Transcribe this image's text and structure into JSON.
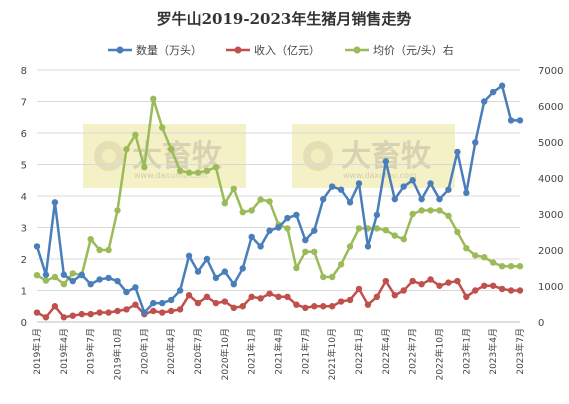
{
  "chart_data": {
    "type": "line",
    "title": "罗牛山2019-2023年生猪月销售走势",
    "y_left_ticks": [
      "0",
      "1",
      "2",
      "3",
      "4",
      "5",
      "6",
      "7",
      "8"
    ],
    "y_right_ticks": [
      "0",
      "1000",
      "2000",
      "3000",
      "4000",
      "5000",
      "6000",
      "7000"
    ],
    "ylim_left": [
      0,
      8
    ],
    "ylim_right": [
      0,
      7000
    ],
    "x_tick_labels": [
      "2019年1月",
      "2019年4月",
      "2019年7月",
      "2019年10月",
      "2020年1月",
      "2020年4月",
      "2020年7月",
      "2020年10月",
      "2021年1月",
      "2021年4月",
      "2021年7月",
      "2021年10月",
      "2022年1月",
      "2022年4月",
      "2022年7月",
      "2022年10月",
      "2023年1月",
      "2023年4月",
      "2023年7月"
    ],
    "months_count": 55,
    "grid": "horizontal",
    "legend_position": "top",
    "watermark": {
      "brand": "大畜牧",
      "url": "www.daxumu.com"
    },
    "series": [
      {
        "name": "数量（万头）",
        "axis": "left",
        "color": "#4a7ebb",
        "values": [
          2.4,
          1.5,
          3.8,
          1.5,
          1.3,
          1.5,
          1.2,
          1.35,
          1.4,
          1.3,
          0.95,
          1.1,
          0.3,
          0.6,
          0.6,
          0.7,
          1.0,
          2.1,
          1.6,
          2.0,
          1.4,
          1.6,
          1.2,
          1.7,
          2.7,
          2.4,
          2.9,
          3.0,
          3.3,
          3.4,
          2.6,
          2.9,
          3.9,
          4.3,
          4.2,
          3.8,
          4.4,
          2.4,
          3.4,
          5.1,
          3.9,
          4.3,
          4.5,
          3.9,
          4.4,
          3.9,
          4.2,
          5.4,
          4.1,
          5.7,
          7.0,
          7.3,
          7.5,
          6.4,
          6.4
        ]
      },
      {
        "name": "收入（亿元）",
        "axis": "left",
        "color": "#c0504d",
        "values": [
          0.3,
          0.15,
          0.5,
          0.15,
          0.2,
          0.25,
          0.25,
          0.3,
          0.3,
          0.35,
          0.4,
          0.55,
          0.25,
          0.35,
          0.3,
          0.35,
          0.4,
          0.85,
          0.6,
          0.8,
          0.6,
          0.65,
          0.45,
          0.5,
          0.8,
          0.75,
          0.9,
          0.8,
          0.8,
          0.55,
          0.45,
          0.5,
          0.5,
          0.5,
          0.65,
          0.7,
          1.05,
          0.55,
          0.8,
          1.3,
          0.85,
          1.0,
          1.3,
          1.2,
          1.35,
          1.15,
          1.25,
          1.3,
          0.8,
          1.0,
          1.15,
          1.15,
          1.05,
          1.0,
          1.0
        ]
      },
      {
        "name": "均价（元/头）右",
        "axis": "right",
        "color": "#9bbb59",
        "values": [
          1300,
          1150,
          1250,
          1050,
          1350,
          1300,
          2300,
          2000,
          2000,
          3100,
          4800,
          5200,
          4300,
          6200,
          5400,
          4800,
          4200,
          4150,
          4150,
          4200,
          4300,
          3300,
          3700,
          3050,
          3100,
          3400,
          3350,
          2700,
          2600,
          1500,
          1950,
          1950,
          1250,
          1250,
          1600,
          2100,
          2600,
          2600,
          2600,
          2550,
          2400,
          2300,
          3000,
          3100,
          3100,
          3100,
          2950,
          2500,
          2050,
          1850,
          1800,
          1650,
          1550,
          1550,
          1550
        ]
      }
    ]
  }
}
